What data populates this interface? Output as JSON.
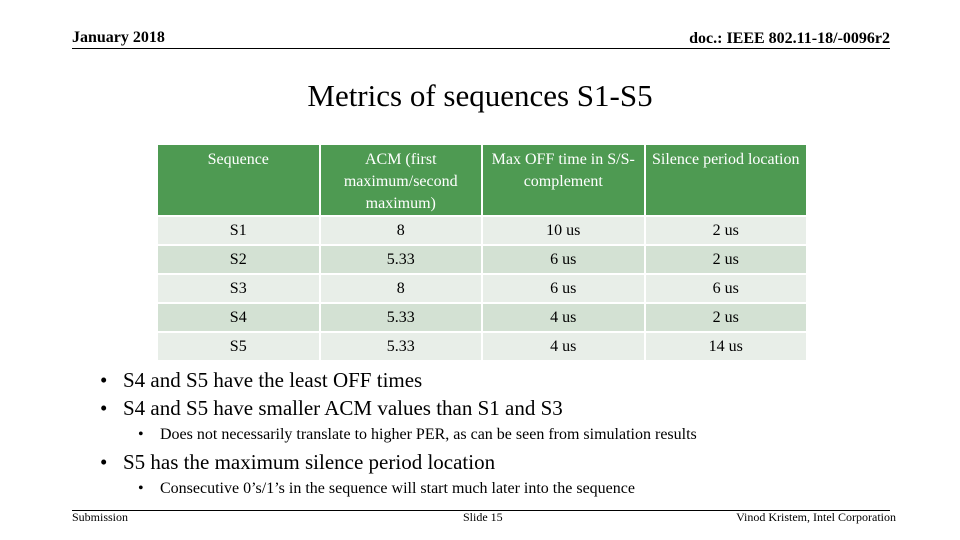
{
  "header": {
    "date": "January 2018",
    "doc": "doc.: IEEE 802.11-18/-0096r2"
  },
  "title": "Metrics of sequences S1-S5",
  "table": {
    "columns": [
      "Sequence",
      "ACM (first maximum/second maximum)",
      "Max OFF time in S/S-complement",
      "Silence period location"
    ],
    "rows": [
      [
        "S1",
        "8",
        "10 us",
        "2 us"
      ],
      [
        "S2",
        "5.33",
        "6 us",
        "2 us"
      ],
      [
        "S3",
        "8",
        "6 us",
        "6 us"
      ],
      [
        "S4",
        "5.33",
        "4 us",
        "2 us"
      ],
      [
        "S5",
        "5.33",
        "4 us",
        "14 us"
      ]
    ]
  },
  "bullets": [
    {
      "text": "S4 and S5 have the least OFF times",
      "sub": []
    },
    {
      "text": "S4 and S5 have smaller ACM values than S1 and S3",
      "sub": [
        "Does not necessarily translate to higher PER, as can be seen from simulation results"
      ]
    },
    {
      "text": "S5 has the maximum silence period location",
      "sub": [
        "Consecutive 0’s/1’s in the sequence will start much later into the sequence"
      ]
    }
  ],
  "footer": {
    "left": "Submission",
    "center": "Slide 15",
    "right": "Vinod Kristem, Intel Corporation"
  }
}
